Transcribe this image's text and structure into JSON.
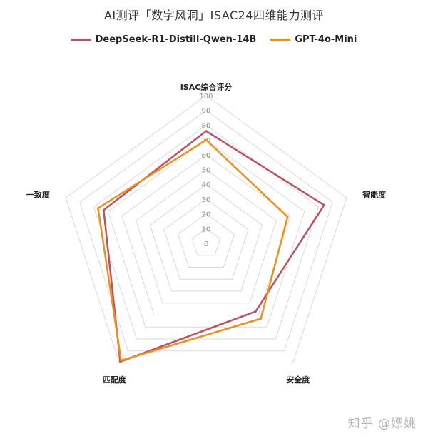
{
  "chart_data": {
    "type": "radar",
    "title": "AI测评「数字风洞」ISAC24四维能力测评",
    "axes": [
      "ISAC综合评分",
      "智能度",
      "安全度",
      "匹配度",
      "一致度"
    ],
    "ticks": [
      "0",
      "10",
      "20",
      "30",
      "40",
      "50",
      "60",
      "70",
      "80",
      "90",
      "100"
    ],
    "rmax": 100,
    "grid": true,
    "legend_position": "top",
    "series": [
      {
        "name": "DeepSeek-R1-Distill-Qwen-14B",
        "color": "#c0505e",
        "values": [
          76,
          84,
          57,
          99,
          73
        ]
      },
      {
        "name": "GPT-4o-Mini",
        "color": "#ed8f1a",
        "values": [
          70,
          58,
          63,
          98,
          77
        ]
      }
    ]
  },
  "watermark": "知乎 @嫖姚"
}
